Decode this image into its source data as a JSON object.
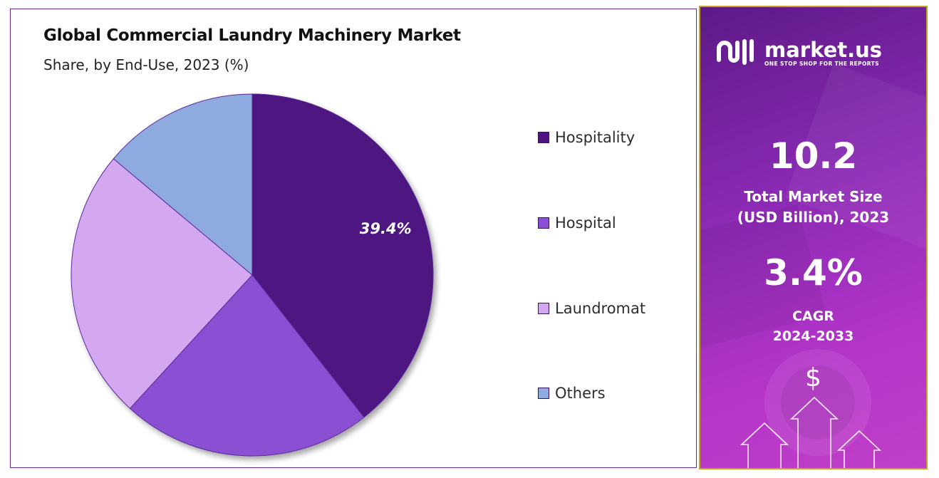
{
  "chart_data": {
    "type": "pie",
    "title": "Global Commercial Laundry Machinery Market",
    "subtitle": "Share, by End-Use, 2023 (%)",
    "categories": [
      "Hospitality",
      "Hospital",
      "Laundromat",
      "Others"
    ],
    "values": [
      39.4,
      22.4,
      24.3,
      13.9
    ],
    "slice_labels": [
      "39.4%",
      "",
      "",
      ""
    ],
    "colors": [
      "#4d1380",
      "#8a4fd2",
      "#d3a8f0",
      "#8eaadf"
    ],
    "legend_position": "right"
  },
  "info_panel": {
    "brand_name": "market.us",
    "brand_tagline": "ONE STOP SHOP FOR THE REPORTS",
    "market_size_value": "10.2",
    "market_size_caption_line1": "Total Market Size",
    "market_size_caption_line2": "(USD Billion), 2023",
    "cagr_value": "3.4%",
    "cagr_caption_line1": "CAGR",
    "cagr_caption_line2": "2024-2033",
    "dollar_symbol": "$",
    "icons": [
      "market-us-logo-icon",
      "dollar-coin-icon",
      "growth-arrow-icon"
    ]
  }
}
